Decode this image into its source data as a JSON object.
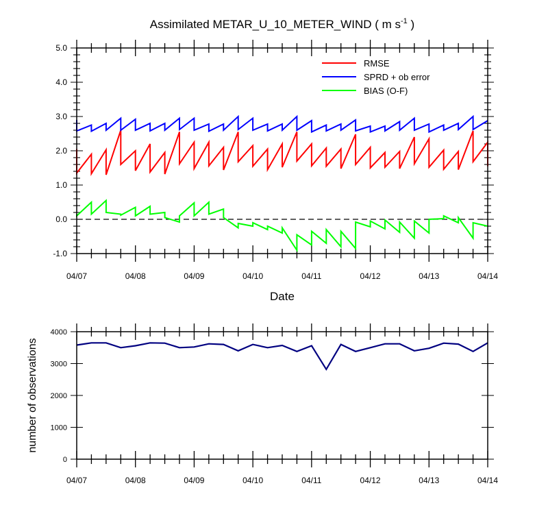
{
  "chart_data": [
    {
      "type": "line",
      "title": "Assimilated METAR_U_10_METER_WIND",
      "title_units": {
        "open": " ( m s",
        "sup": "-1",
        "close": " )"
      },
      "xlabel": "Date",
      "ylabel": "",
      "x_tick_labels": [
        "04/07",
        "04/08",
        "04/09",
        "04/10",
        "04/11",
        "04/12",
        "04/13",
        "04/14"
      ],
      "y_tick_labels": [
        "-1.0",
        "0.0",
        "1.0",
        "2.0",
        "3.0",
        "4.0",
        "5.0"
      ],
      "ylim": [
        -1.0,
        5.0
      ],
      "xlim": [
        0,
        7
      ],
      "reference_line": {
        "y": 0.0,
        "style": "dashed"
      },
      "legend": {
        "placement": "top-right"
      },
      "series": [
        {
          "name": "RMSE",
          "color": "#ff0000",
          "points": [
            [
              0.0,
              2.05
            ],
            [
              0.0,
              1.35
            ],
            [
              0.25,
              1.9
            ],
            [
              0.25,
              1.33
            ],
            [
              0.5,
              2.03
            ],
            [
              0.5,
              1.3
            ],
            [
              0.75,
              2.6
            ],
            [
              0.75,
              1.6
            ],
            [
              1.0,
              2.0
            ],
            [
              1.0,
              1.42
            ],
            [
              1.25,
              2.2
            ],
            [
              1.25,
              1.38
            ],
            [
              1.5,
              1.95
            ],
            [
              1.5,
              1.32
            ],
            [
              1.75,
              2.55
            ],
            [
              1.75,
              1.62
            ],
            [
              2.0,
              2.25
            ],
            [
              2.0,
              1.48
            ],
            [
              2.25,
              2.25
            ],
            [
              2.25,
              1.56
            ],
            [
              2.5,
              2.1
            ],
            [
              2.5,
              1.44
            ],
            [
              2.75,
              2.55
            ],
            [
              2.75,
              1.68
            ],
            [
              3.0,
              2.15
            ],
            [
              3.0,
              1.55
            ],
            [
              3.25,
              2.05
            ],
            [
              3.25,
              1.45
            ],
            [
              3.5,
              2.2
            ],
            [
              3.5,
              1.52
            ],
            [
              3.75,
              2.55
            ],
            [
              3.75,
              1.7
            ],
            [
              4.0,
              2.2
            ],
            [
              4.0,
              1.56
            ],
            [
              4.25,
              2.08
            ],
            [
              4.25,
              1.55
            ],
            [
              4.5,
              2.05
            ],
            [
              4.5,
              1.48
            ],
            [
              4.75,
              2.48
            ],
            [
              4.75,
              1.6
            ],
            [
              5.0,
              2.1
            ],
            [
              5.0,
              1.5
            ],
            [
              5.25,
              1.95
            ],
            [
              5.25,
              1.52
            ],
            [
              5.5,
              1.98
            ],
            [
              5.5,
              1.48
            ],
            [
              5.75,
              2.4
            ],
            [
              5.75,
              1.62
            ],
            [
              6.0,
              2.35
            ],
            [
              6.0,
              1.52
            ],
            [
              6.25,
              2.02
            ],
            [
              6.25,
              1.46
            ],
            [
              6.5,
              1.98
            ],
            [
              6.5,
              1.45
            ],
            [
              6.75,
              2.58
            ],
            [
              6.75,
              1.68
            ],
            [
              7.0,
              2.25
            ],
            [
              7.0,
              1.55
            ]
          ]
        },
        {
          "name": "SPRD + ob error",
          "color": "#0000ff",
          "points": [
            [
              0.0,
              2.9
            ],
            [
              0.0,
              2.58
            ],
            [
              0.25,
              2.75
            ],
            [
              0.25,
              2.57
            ],
            [
              0.5,
              2.8
            ],
            [
              0.5,
              2.6
            ],
            [
              0.75,
              2.95
            ],
            [
              0.75,
              2.6
            ],
            [
              1.0,
              2.92
            ],
            [
              1.0,
              2.6
            ],
            [
              1.25,
              2.8
            ],
            [
              1.25,
              2.58
            ],
            [
              1.5,
              2.8
            ],
            [
              1.5,
              2.6
            ],
            [
              1.75,
              2.95
            ],
            [
              1.75,
              2.62
            ],
            [
              2.0,
              2.95
            ],
            [
              2.0,
              2.6
            ],
            [
              2.25,
              2.78
            ],
            [
              2.25,
              2.57
            ],
            [
              2.5,
              2.78
            ],
            [
              2.5,
              2.6
            ],
            [
              2.75,
              3.0
            ],
            [
              2.75,
              2.62
            ],
            [
              3.0,
              2.95
            ],
            [
              3.0,
              2.6
            ],
            [
              3.25,
              2.78
            ],
            [
              3.25,
              2.58
            ],
            [
              3.5,
              2.78
            ],
            [
              3.5,
              2.6
            ],
            [
              3.75,
              3.0
            ],
            [
              3.75,
              2.6
            ],
            [
              4.0,
              2.88
            ],
            [
              4.0,
              2.55
            ],
            [
              4.25,
              2.75
            ],
            [
              4.25,
              2.58
            ],
            [
              4.5,
              2.78
            ],
            [
              4.5,
              2.6
            ],
            [
              4.75,
              2.9
            ],
            [
              4.75,
              2.58
            ],
            [
              5.0,
              2.72
            ],
            [
              5.0,
              2.55
            ],
            [
              5.25,
              2.72
            ],
            [
              5.25,
              2.58
            ],
            [
              5.5,
              2.85
            ],
            [
              5.5,
              2.6
            ],
            [
              5.75,
              2.95
            ],
            [
              5.75,
              2.6
            ],
            [
              6.0,
              2.78
            ],
            [
              6.0,
              2.55
            ],
            [
              6.25,
              2.75
            ],
            [
              6.25,
              2.6
            ],
            [
              6.5,
              2.8
            ],
            [
              6.5,
              2.62
            ],
            [
              6.75,
              3.0
            ],
            [
              6.75,
              2.62
            ],
            [
              7.0,
              2.88
            ]
          ]
        },
        {
          "name": "BIAS (O-F)",
          "color": "#00ff00",
          "points": [
            [
              0.0,
              0.15
            ],
            [
              0.0,
              0.1
            ],
            [
              0.25,
              0.5
            ],
            [
              0.25,
              0.15
            ],
            [
              0.5,
              0.55
            ],
            [
              0.5,
              0.2
            ],
            [
              0.75,
              0.15
            ],
            [
              0.75,
              0.12
            ],
            [
              1.0,
              0.35
            ],
            [
              1.0,
              0.1
            ],
            [
              1.25,
              0.38
            ],
            [
              1.25,
              0.15
            ],
            [
              1.5,
              0.2
            ],
            [
              1.5,
              0.05
            ],
            [
              1.75,
              -0.08
            ],
            [
              1.75,
              0.1
            ],
            [
              2.0,
              0.48
            ],
            [
              2.0,
              0.1
            ],
            [
              2.25,
              0.5
            ],
            [
              2.25,
              0.15
            ],
            [
              2.5,
              0.3
            ],
            [
              2.5,
              0.05
            ],
            [
              2.75,
              -0.25
            ],
            [
              2.75,
              -0.12
            ],
            [
              3.0,
              -0.2
            ],
            [
              3.0,
              -0.1
            ],
            [
              3.25,
              -0.3
            ],
            [
              3.25,
              -0.2
            ],
            [
              3.5,
              -0.4
            ],
            [
              3.5,
              -0.25
            ],
            [
              3.75,
              -0.9
            ],
            [
              3.75,
              -0.45
            ],
            [
              4.0,
              -0.75
            ],
            [
              4.0,
              -0.35
            ],
            [
              4.25,
              -0.7
            ],
            [
              4.25,
              -0.3
            ],
            [
              4.5,
              -0.8
            ],
            [
              4.5,
              -0.35
            ],
            [
              4.75,
              -0.85
            ],
            [
              4.75,
              -0.08
            ],
            [
              5.0,
              -0.22
            ],
            [
              5.0,
              -0.05
            ],
            [
              5.25,
              -0.28
            ],
            [
              5.25,
              -0.02
            ],
            [
              5.5,
              -0.38
            ],
            [
              5.5,
              -0.08
            ],
            [
              5.75,
              -0.55
            ],
            [
              5.75,
              -0.05
            ],
            [
              6.0,
              -0.4
            ],
            [
              6.0,
              0.0
            ],
            [
              6.25,
              0.02
            ],
            [
              6.25,
              0.1
            ],
            [
              6.5,
              -0.1
            ],
            [
              6.5,
              0.05
            ],
            [
              6.75,
              -0.55
            ],
            [
              6.75,
              -0.1
            ],
            [
              7.0,
              -0.2
            ]
          ]
        }
      ]
    },
    {
      "type": "line",
      "title": "",
      "xlabel": "",
      "ylabel": "number of observations",
      "x_tick_labels": [
        "04/07",
        "04/08",
        "04/09",
        "04/10",
        "04/11",
        "04/12",
        "04/13",
        "04/14"
      ],
      "y_tick_labels": [
        "0",
        "1000",
        "2000",
        "3000",
        "4000"
      ],
      "ylim": [
        0,
        4000
      ],
      "xlim": [
        0,
        7
      ],
      "series": [
        {
          "color": "#000080",
          "x": [
            0.0,
            0.25,
            0.5,
            0.75,
            1.0,
            1.25,
            1.5,
            1.75,
            2.0,
            2.25,
            2.5,
            2.75,
            3.0,
            3.25,
            3.5,
            3.75,
            4.0,
            4.25,
            4.5,
            4.75,
            5.0,
            5.25,
            5.5,
            5.75,
            6.0,
            6.25,
            6.5,
            6.75,
            7.0
          ],
          "values": [
            3580,
            3650,
            3650,
            3500,
            3560,
            3650,
            3640,
            3500,
            3520,
            3620,
            3600,
            3400,
            3600,
            3500,
            3570,
            3380,
            3560,
            2820,
            3600,
            3380,
            3500,
            3620,
            3620,
            3400,
            3480,
            3640,
            3610,
            3380,
            3650
          ]
        }
      ]
    }
  ]
}
